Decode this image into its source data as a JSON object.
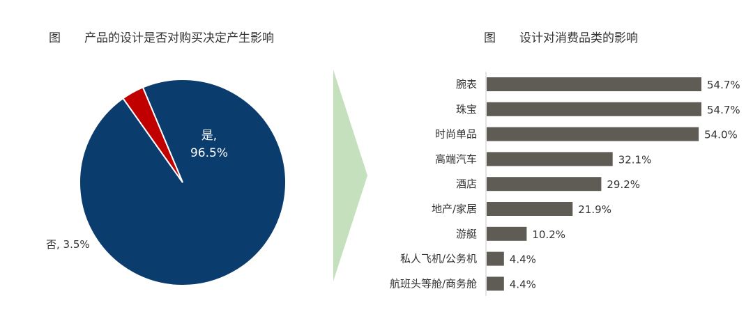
{
  "chart_data": [
    {
      "type": "pie",
      "title": "图　　产品的设计是否对购买决定产生影响",
      "slices": [
        {
          "label": "是",
          "value": 96.5,
          "display": "96.5%",
          "color": "#0b3c6e"
        },
        {
          "label": "否",
          "value": 3.5,
          "display": "3.5%",
          "color": "#c00000"
        }
      ]
    },
    {
      "type": "bar",
      "orientation": "horizontal",
      "title": "图　　设计对消费品类的影响",
      "categories": [
        "腕表",
        "珠宝",
        "时尚单品",
        "高端汽车",
        "酒店",
        "地产/家居",
        "游艇",
        "私人飞机/公务机",
        "航班头等舱/商务舱"
      ],
      "values": [
        54.7,
        54.7,
        54.0,
        32.1,
        29.2,
        21.9,
        10.2,
        4.4,
        4.4
      ],
      "value_labels": [
        "54.7%",
        "54.7%",
        "54.0%",
        "32.1%",
        "29.2%",
        "21.9%",
        "10.2%",
        "4.4%",
        "4.4%"
      ],
      "bar_color": "#5f5c55",
      "xlim": [
        0,
        60
      ],
      "grid": false
    }
  ],
  "colors": {
    "arrow": "#c5e0bd",
    "axis": "#c8c8c8"
  }
}
